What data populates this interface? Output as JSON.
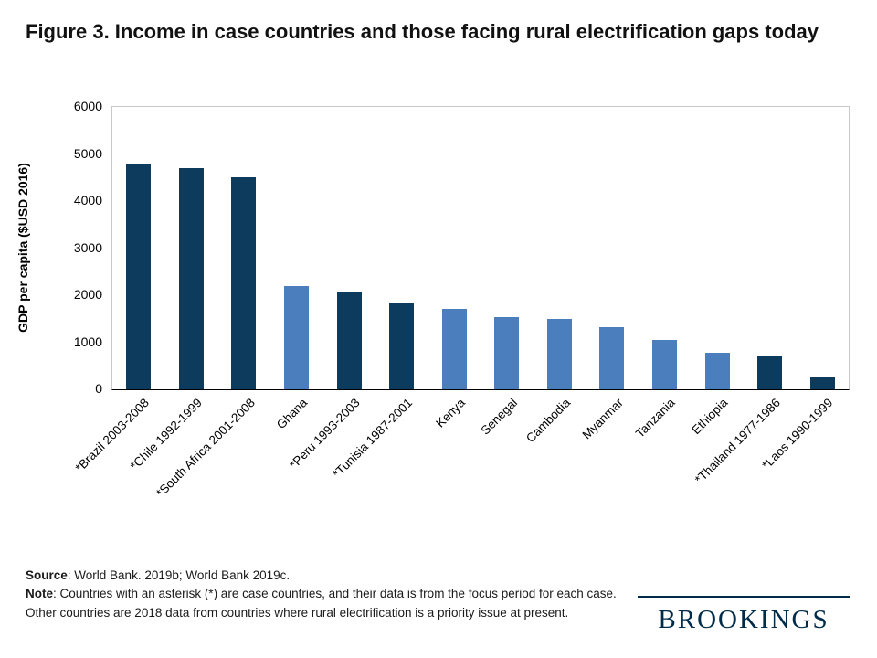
{
  "title": "Figure 3. Income in case countries and those facing rural electrification gaps today",
  "chart_data": {
    "type": "bar",
    "categories": [
      "*Brazil 2003-2008",
      "*Chile 1992-1999",
      "*South Africa 2001-2008",
      "Ghana",
      "*Peru 1993-2003",
      "*Tunisia 1987-2001",
      "Kenya",
      "Senegal",
      "Cambodia",
      "Myanmar",
      "Tanzania",
      "Ethiopia",
      "*Thailand 1977-1986",
      "*Laos 1990-1999"
    ],
    "values": [
      4800,
      4700,
      4500,
      2200,
      2060,
      1820,
      1700,
      1530,
      1500,
      1320,
      1050,
      780,
      690,
      280
    ],
    "is_case": [
      true,
      true,
      true,
      false,
      true,
      true,
      false,
      false,
      false,
      false,
      false,
      false,
      true,
      true
    ],
    "ylabel": "GDP per capita ($USD 2016)",
    "xlabel": "",
    "ylim": [
      0,
      6000
    ],
    "yticks": [
      0,
      1000,
      2000,
      3000,
      4000,
      5000,
      6000
    ],
    "grid": false,
    "legend": "none",
    "colors": {
      "case": "#0d3b5e",
      "other": "#4a7ebc"
    }
  },
  "footer": {
    "source_label": "Source",
    "source_text": ": World Bank. 2019b; World Bank 2019c.",
    "note_label": "Note",
    "note_text": ": Countries with an asterisk (*) are case countries, and their data is from the focus period for each case. Other countries are 2018 data from countries where rural electrification is a priority issue at present."
  },
  "brand": {
    "logo_text": "BROOKINGS",
    "logo_color": "#002b49"
  }
}
